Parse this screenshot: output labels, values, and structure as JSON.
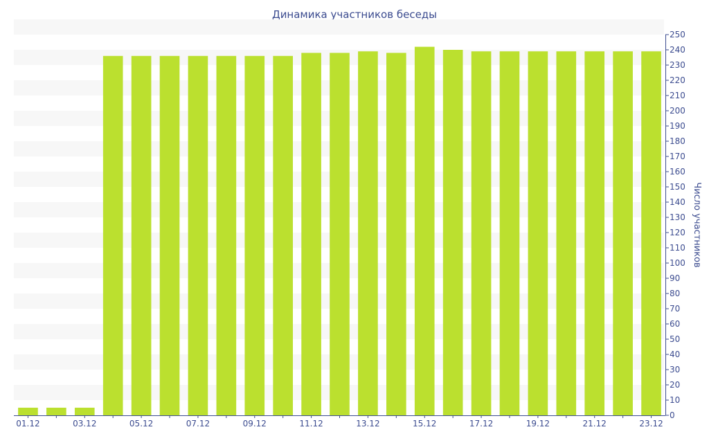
{
  "chart_data": {
    "type": "bar",
    "title": "Динамика участников беседы",
    "ylabel": "Число участников",
    "xlabel": "",
    "ylim": [
      0,
      250
    ],
    "y_ticks": [
      0,
      10,
      20,
      30,
      40,
      50,
      60,
      70,
      80,
      90,
      100,
      110,
      120,
      130,
      140,
      150,
      160,
      170,
      180,
      190,
      200,
      210,
      220,
      230,
      240,
      250
    ],
    "y_axis_side": "right",
    "grid": "alternating horizontal bands",
    "legend": "none",
    "colors": {
      "bar": "#bbe02f",
      "band": "#f7f7f7",
      "axis": "#3b4b8f",
      "text": "#3b4b8f"
    },
    "categories": [
      "01.12",
      "02.12",
      "03.12",
      "04.12",
      "05.12",
      "06.12",
      "07.12",
      "08.12",
      "09.12",
      "10.12",
      "11.12",
      "12.12",
      "13.12",
      "14.12",
      "15.12",
      "16.12",
      "17.12",
      "18.12",
      "19.12",
      "20.12",
      "21.12",
      "22.12",
      "23.12"
    ],
    "x_tick_labels": [
      "01.12",
      "03.12",
      "05.12",
      "07.12",
      "09.12",
      "11.12",
      "13.12",
      "15.12",
      "17.12",
      "19.12",
      "21.12",
      "23.12"
    ],
    "values": [
      5,
      5,
      5,
      236,
      236,
      236,
      236,
      236,
      236,
      236,
      238,
      238,
      239,
      238,
      242,
      240,
      239,
      239,
      239,
      239,
      239,
      239,
      239
    ]
  }
}
